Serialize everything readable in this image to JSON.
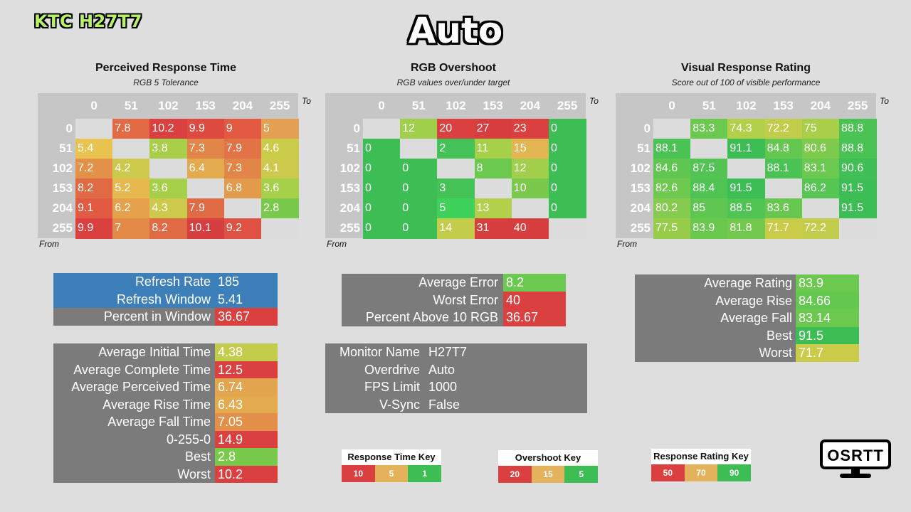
{
  "brand": "KTC H27T7",
  "title": "Auto",
  "columns": [
    "0",
    "51",
    "102",
    "153",
    "204",
    "255"
  ],
  "rows": [
    "0",
    "51",
    "102",
    "153",
    "204",
    "255"
  ],
  "to_label": "To",
  "from_label": "From",
  "chart_data": [
    {
      "type": "heatmap",
      "title": "Perceived Response Time",
      "subtitle": "RGB 5 Tolerance",
      "x": [
        "0",
        "51",
        "102",
        "153",
        "204",
        "255"
      ],
      "y": [
        "0",
        "51",
        "102",
        "153",
        "204",
        "255"
      ],
      "xlabel": "To",
      "ylabel": "From",
      "values": [
        [
          null,
          "7.8",
          "10.2",
          "9.9",
          "9",
          "5"
        ],
        [
          "5.4",
          null,
          "3.8",
          "7.3",
          "7.9",
          "4.6"
        ],
        [
          "7.2",
          "4.2",
          null,
          "6.4",
          "7.3",
          "4.1"
        ],
        [
          "8.2",
          "5.2",
          "3.6",
          null,
          "6.8",
          "3.6"
        ],
        [
          "9.1",
          "6.2",
          "4.3",
          "7.9",
          null,
          "2.8"
        ],
        [
          "9.9",
          "7",
          "8.2",
          "10.1",
          "9.2",
          null
        ]
      ],
      "colors": [
        [
          null,
          "#e26a45",
          "#d9403f",
          "#dc4a40",
          "#e25a42",
          "#e39f52"
        ],
        [
          "#e9c34f",
          null,
          "#a9cf4a",
          "#e28549",
          "#e27346",
          "#cbcb4a"
        ],
        [
          "#e39049",
          "#cdc94c",
          null,
          "#e3aa4e",
          "#e28549",
          "#cdc94c"
        ],
        [
          "#e06a44",
          "#e6b94e",
          "#a7d04a",
          null,
          "#e39b4b",
          "#a7d04a"
        ],
        [
          "#e25a42",
          "#e6a14c",
          "#cdc94c",
          "#e06a44",
          null,
          "#79c94b"
        ],
        [
          "#d9403f",
          "#e38a49",
          "#e06a44",
          "#d73e3f",
          "#df5243",
          null
        ]
      ]
    },
    {
      "type": "heatmap",
      "title": "RGB Overshoot",
      "subtitle": "RGB values over/under target",
      "x": [
        "0",
        "51",
        "102",
        "153",
        "204",
        "255"
      ],
      "y": [
        "0",
        "51",
        "102",
        "153",
        "204",
        "255"
      ],
      "xlabel": "To",
      "ylabel": "From",
      "values": [
        [
          null,
          "12",
          "20",
          "27",
          "23",
          "0"
        ],
        [
          "0",
          null,
          "2",
          "11",
          "15",
          "0"
        ],
        [
          "0",
          "0",
          null,
          "8",
          "12",
          "0"
        ],
        [
          "0",
          "0",
          "3",
          null,
          "10",
          "0"
        ],
        [
          "0",
          "0",
          "5",
          "13",
          null,
          "0"
        ],
        [
          "0",
          "0",
          "14",
          "31",
          "40",
          null
        ]
      ],
      "colors": [
        [
          null,
          "#9fcf4b",
          "#d9403f",
          "#d73e3f",
          "#d9403f",
          "#3cbe55"
        ],
        [
          "#3cbe55",
          null,
          "#42c257",
          "#a7d04a",
          "#e3b553",
          "#3cbe55"
        ],
        [
          "#3cbe55",
          "#3cbe55",
          null,
          "#6cc94f",
          "#a2cf4b",
          "#3cbe55"
        ],
        [
          "#3cbe55",
          "#3cbe55",
          "#44c256",
          null,
          "#7ac94c",
          "#3cbe55"
        ],
        [
          "#3cbe55",
          "#3cbe55",
          "#3ed25b",
          "#b2d04a",
          null,
          "#3cbe55"
        ],
        [
          "#3cbe55",
          "#3cbe55",
          "#c4cc4b",
          "#d73e3f",
          "#d73e3f",
          null
        ]
      ]
    },
    {
      "type": "heatmap",
      "title": "Visual Response Rating",
      "subtitle": "Score out of 100 of visible performance",
      "x": [
        "0",
        "51",
        "102",
        "153",
        "204",
        "255"
      ],
      "y": [
        "0",
        "51",
        "102",
        "153",
        "204",
        "255"
      ],
      "xlabel": "To",
      "ylabel": "From",
      "values": [
        [
          null,
          "83.3",
          "74.3",
          "72.2",
          "75",
          "88.8"
        ],
        [
          "88.1",
          null,
          "91.1",
          "84.8",
          "80.6",
          "88.8"
        ],
        [
          "84.6",
          "87.5",
          null,
          "88.1",
          "83.1",
          "90.6"
        ],
        [
          "82.6",
          "88.4",
          "91.5",
          null,
          "86.2",
          "91.5"
        ],
        [
          "80.2",
          "85",
          "88.5",
          "83.6",
          null,
          "91.5"
        ],
        [
          "77.5",
          "83.9",
          "81.8",
          "71.7",
          "72.2",
          null
        ]
      ],
      "colors": [
        [
          null,
          "#6cc94f",
          "#b3d04a",
          "#c2cd4b",
          "#a9cf4a",
          "#4bc354"
        ],
        [
          "#4bc354",
          null,
          "#3dbe55",
          "#63c750",
          "#7dca4d",
          "#4bc354"
        ],
        [
          "#5fc651",
          "#52c453",
          null,
          "#4bc354",
          "#6cc94f",
          "#3fbf55"
        ],
        [
          "#6ec94f",
          "#4fc453",
          "#3cbe55",
          null,
          "#57c552",
          "#3cbe55"
        ],
        [
          "#85cb4d",
          "#5ec651",
          "#4fc453",
          "#67c850",
          null,
          "#3cbe55"
        ],
        [
          "#97cd4b",
          "#6ac84f",
          "#72c94e",
          "#cbcb4a",
          "#c2cd4b",
          null
        ]
      ]
    }
  ],
  "refresh_panel": {
    "rows": [
      {
        "label": "Refresh Rate",
        "value": "185",
        "bg": "#3d7fb9",
        "vbg": "#3d7fb9"
      },
      {
        "label": "Refresh Window",
        "value": "5.41",
        "bg": "#3d7fb9",
        "vbg": "#3d7fb9"
      },
      {
        "label": "Percent in Window",
        "value": "36.67",
        "bg": "#7b7b7b",
        "vbg": "#d9403f"
      }
    ]
  },
  "time_panel": {
    "rows": [
      {
        "label": "Average Initial Time",
        "value": "4.38",
        "vbg": "#c4cc4b"
      },
      {
        "label": "Average Complete Time",
        "value": "12.5",
        "vbg": "#d9403f"
      },
      {
        "label": "Average Perceived Time",
        "value": "6.74",
        "vbg": "#e3a54e"
      },
      {
        "label": "Average Rise Time",
        "value": "6.43",
        "vbg": "#e3aa4e"
      },
      {
        "label": "Average Fall Time",
        "value": "7.05",
        "vbg": "#e38f49"
      },
      {
        "label": "0-255-0",
        "value": "14.9",
        "vbg": "#d9403f"
      },
      {
        "label": "Best",
        "value": "2.8",
        "vbg": "#79c94b"
      },
      {
        "label": "Worst",
        "value": "10.2",
        "vbg": "#d9403f"
      }
    ]
  },
  "error_panel": {
    "rows": [
      {
        "label": "Average Error",
        "value": "8.2",
        "vbg": "#6cc94f"
      },
      {
        "label": "Worst Error",
        "value": "40",
        "vbg": "#d9403f"
      },
      {
        "label": "Percent Above 10 RGB",
        "value": "36.67",
        "vbg": "#d9403f"
      }
    ]
  },
  "monitor_panel": {
    "rows": [
      {
        "label": "Monitor Name",
        "value": "H27T7"
      },
      {
        "label": "Overdrive",
        "value": "Auto"
      },
      {
        "label": "FPS Limit",
        "value": "1000"
      },
      {
        "label": "V-Sync",
        "value": "False"
      }
    ]
  },
  "rating_panel": {
    "rows": [
      {
        "label": "Average Rating",
        "value": "83.9",
        "vbg": "#6cc94f"
      },
      {
        "label": "Average Rise",
        "value": "84.66",
        "vbg": "#63c750"
      },
      {
        "label": "Average Fall",
        "value": "83.14",
        "vbg": "#6cc94f"
      },
      {
        "label": "Best",
        "value": "91.5",
        "vbg": "#3cbe55"
      },
      {
        "label": "Worst",
        "value": "71.7",
        "vbg": "#cbcb4a"
      }
    ]
  },
  "keys": [
    {
      "title": "Response Time Key",
      "cells": [
        {
          "v": "10",
          "c": "#d9403f"
        },
        {
          "v": "5",
          "c": "#e3b25a"
        },
        {
          "v": "1",
          "c": "#3cbe55"
        }
      ]
    },
    {
      "title": "Overshoot Key",
      "cells": [
        {
          "v": "20",
          "c": "#d9403f"
        },
        {
          "v": "15",
          "c": "#e3b25a"
        },
        {
          "v": "5",
          "c": "#3cbe55"
        }
      ]
    },
    {
      "title": "Response Rating Key",
      "cells": [
        {
          "v": "50",
          "c": "#d9403f"
        },
        {
          "v": "70",
          "c": "#e3b25a"
        },
        {
          "v": "90",
          "c": "#3cbe55"
        }
      ]
    }
  ],
  "logo_text": "OSRTT"
}
